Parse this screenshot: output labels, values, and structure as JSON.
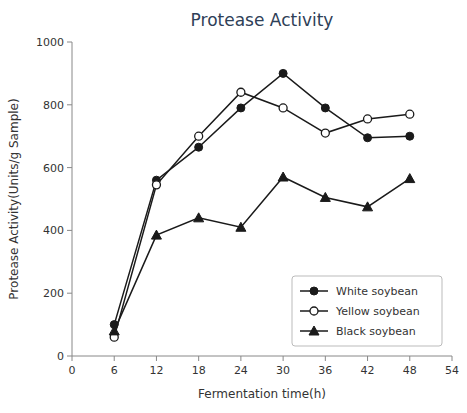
{
  "chart_data": {
    "type": "line",
    "title": "Protease Activity",
    "xlabel": "Fermentation time(h)",
    "ylabel": "Protease Activity(Units/g Sample)",
    "x": [
      6,
      12,
      18,
      24,
      30,
      36,
      42,
      48
    ],
    "series": [
      {
        "name": "White soybean",
        "color": "#1a1a1a",
        "marker": "circle",
        "values": [
          100,
          560,
          665,
          790,
          900,
          790,
          695,
          700
        ]
      },
      {
        "name": "Yellow soybean",
        "color": "#1a1a1a",
        "marker": "open-circle",
        "values": [
          60,
          545,
          700,
          840,
          790,
          710,
          755,
          770
        ]
      },
      {
        "name": "Black soybean",
        "color": "#1a1a1a",
        "marker": "triangle",
        "values": [
          80,
          385,
          440,
          410,
          570,
          505,
          475,
          565
        ]
      }
    ],
    "xlim": [
      0,
      54
    ],
    "xticks": [
      0,
      6,
      12,
      18,
      24,
      30,
      36,
      42,
      48,
      54
    ],
    "ylim": [
      0,
      1000
    ],
    "yticks": [
      0,
      200,
      400,
      600,
      800,
      1000
    ],
    "legend": "lower right",
    "grid": false
  }
}
